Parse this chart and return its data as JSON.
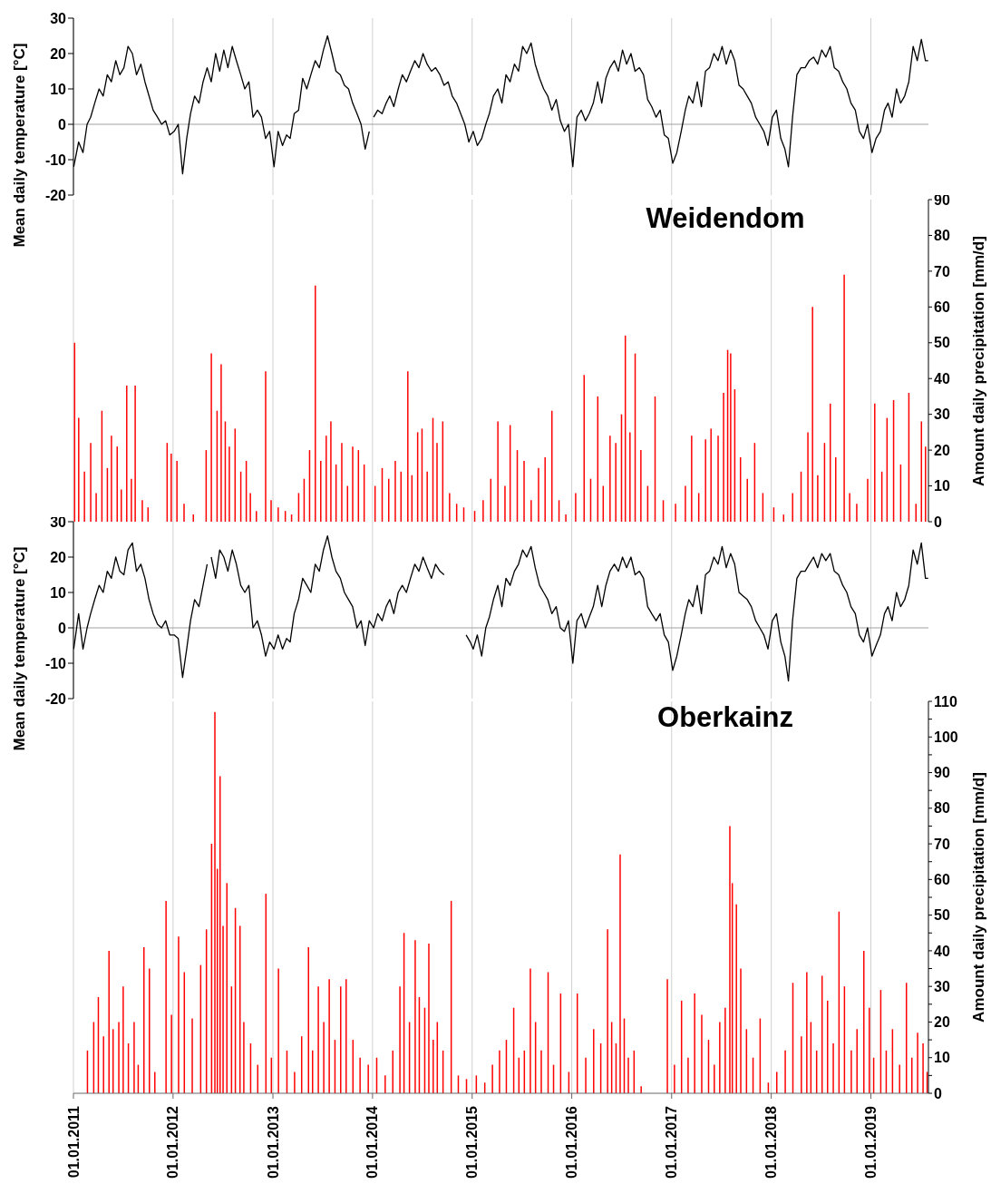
{
  "chart_data": [
    {
      "type": "line",
      "ylabel": "Mean daily temperature [°C]",
      "xlim": [
        "2011-01-01",
        "2019-07-31"
      ],
      "xticks": [
        {
          "value": "2011-01-01",
          "label": null
        },
        {
          "value": "2012-01-01",
          "label": null
        },
        {
          "value": "2013-01-01",
          "label": null
        },
        {
          "value": "2014-01-01",
          "label": null
        },
        {
          "value": "2015-01-01",
          "label": null
        },
        {
          "value": "2016-01-01",
          "label": null
        },
        {
          "value": "2017-01-01",
          "label": null
        },
        {
          "value": "2018-01-01",
          "label": null
        },
        {
          "value": "2019-01-01",
          "label": null
        }
      ],
      "ylim": [
        -20,
        30
      ],
      "yticks": [
        -20,
        -10,
        0,
        10,
        20,
        30
      ],
      "tick_labels": "y",
      "grid": "x",
      "ref_lines": [
        {
          "axis": "y",
          "value": 0,
          "color": "#a0a0a0"
        }
      ],
      "series": [
        {
          "color": "#000000",
          "x": [
            "2011-01-02",
            "2011-01-20",
            "2011-02-05",
            "2011-02-20",
            "2011-03-05",
            "2011-03-20",
            "2011-04-05",
            "2011-04-20",
            "2011-05-05",
            "2011-05-20",
            "2011-06-05",
            "2011-06-20",
            "2011-07-05",
            "2011-07-20",
            "2011-08-05",
            "2011-08-20",
            "2011-09-05",
            "2011-09-20",
            "2011-10-05",
            "2011-10-20",
            "2011-11-05",
            "2011-11-20",
            "2011-12-05",
            "2011-12-20",
            "2012-01-05",
            "2012-01-20",
            "2012-02-05",
            "2012-02-20",
            "2012-03-05",
            "2012-03-20",
            "2012-04-05",
            "2012-04-20",
            "2012-05-05",
            "2012-05-20",
            "2012-06-05",
            "2012-06-20",
            "2012-07-05",
            "2012-07-20",
            "2012-08-05",
            "2012-08-20",
            "2012-09-05",
            "2012-09-20",
            "2012-10-05",
            "2012-10-20",
            "2012-11-05",
            "2012-11-20",
            "2012-12-05",
            "2012-12-20",
            "2013-01-05",
            "2013-01-20",
            "2013-02-05",
            "2013-02-20",
            "2013-03-05",
            "2013-03-20",
            "2013-04-05",
            "2013-04-20",
            "2013-05-05",
            "2013-05-20",
            "2013-06-05",
            "2013-06-20",
            "2013-07-05",
            "2013-07-20",
            "2013-08-05",
            "2013-08-20",
            "2013-09-05",
            "2013-09-20",
            "2013-10-05",
            "2013-10-20",
            "2013-11-05",
            "2013-11-20",
            "2013-12-05",
            "2013-12-20",
            "2013-12-28",
            "2014-01-05",
            "2014-01-20",
            "2014-02-05",
            "2014-02-20",
            "2014-03-05",
            "2014-03-20",
            "2014-04-05",
            "2014-04-20",
            "2014-05-05",
            "2014-05-20",
            "2014-06-05",
            "2014-06-20",
            "2014-07-05",
            "2014-07-20",
            "2014-08-05",
            "2014-08-20",
            "2014-09-05",
            "2014-09-20",
            "2014-10-05",
            "2014-10-20",
            "2014-11-05",
            "2014-11-20",
            "2014-12-05",
            "2014-12-20",
            "2015-01-05",
            "2015-01-20",
            "2015-02-05",
            "2015-02-20",
            "2015-03-05",
            "2015-03-20",
            "2015-04-05",
            "2015-04-20",
            "2015-05-05",
            "2015-05-20",
            "2015-06-05",
            "2015-06-20",
            "2015-07-05",
            "2015-07-20",
            "2015-08-05",
            "2015-08-20",
            "2015-09-05",
            "2015-09-20",
            "2015-10-05",
            "2015-10-20",
            "2015-11-05",
            "2015-11-20",
            "2015-12-05",
            "2015-12-20",
            "2016-01-05",
            "2016-01-20",
            "2016-02-05",
            "2016-02-20",
            "2016-03-05",
            "2016-03-20",
            "2016-04-05",
            "2016-04-20",
            "2016-05-05",
            "2016-05-20",
            "2016-06-05",
            "2016-06-20",
            "2016-07-05",
            "2016-07-20",
            "2016-08-05",
            "2016-08-20",
            "2016-09-05",
            "2016-09-20",
            "2016-10-05",
            "2016-10-20",
            "2016-11-05",
            "2016-11-20",
            "2016-12-05",
            "2016-12-20",
            "2017-01-05",
            "2017-01-20",
            "2017-02-05",
            "2017-02-20",
            "2017-03-05",
            "2017-03-20",
            "2017-04-05",
            "2017-04-20",
            "2017-05-05",
            "2017-05-20",
            "2017-06-05",
            "2017-06-20",
            "2017-07-05",
            "2017-07-20",
            "2017-08-05",
            "2017-08-20",
            "2017-09-05",
            "2017-09-20",
            "2017-10-05",
            "2017-10-20",
            "2017-11-05",
            "2017-11-20",
            "2017-12-05",
            "2017-12-20",
            "2018-01-05",
            "2018-01-20",
            "2018-02-05",
            "2018-02-20",
            "2018-03-05",
            "2018-03-20",
            "2018-04-05",
            "2018-04-20",
            "2018-05-05",
            "2018-05-20",
            "2018-06-05",
            "2018-06-20",
            "2018-07-05",
            "2018-07-20",
            "2018-08-05",
            "2018-08-20",
            "2018-09-05",
            "2018-09-20",
            "2018-10-05",
            "2018-10-20",
            "2018-11-05",
            "2018-11-20",
            "2018-12-05",
            "2018-12-20",
            "2019-01-05",
            "2019-01-20",
            "2019-02-05",
            "2019-02-20",
            "2019-03-05",
            "2019-03-20",
            "2019-04-05",
            "2019-04-20",
            "2019-05-05",
            "2019-05-20",
            "2019-06-05",
            "2019-06-20",
            "2019-07-05",
            "2019-07-20",
            "2019-07-30"
          ],
          "values": [
            -12,
            -5,
            -8,
            0,
            2,
            6,
            10,
            8,
            14,
            12,
            18,
            14,
            16,
            22,
            20,
            14,
            17,
            12,
            8,
            4,
            2,
            0,
            1,
            -3,
            -2,
            0,
            -14,
            -4,
            3,
            8,
            6,
            12,
            16,
            12,
            20,
            15,
            21,
            16,
            22,
            18,
            14,
            10,
            12,
            2,
            4,
            2,
            -4,
            -2,
            -12,
            -2,
            -6,
            -3,
            -4,
            3,
            4,
            13,
            10,
            14,
            18,
            16,
            21,
            25,
            20,
            15,
            14,
            11,
            10,
            6,
            3,
            0,
            -7,
            -2,
            null,
            2,
            4,
            3,
            6,
            8,
            5,
            10,
            14,
            12,
            15,
            18,
            16,
            20,
            17,
            15,
            16,
            14,
            11,
            12,
            8,
            6,
            3,
            0,
            -5,
            -2,
            -6,
            -4,
            0,
            3,
            8,
            10,
            6,
            14,
            12,
            17,
            15,
            22,
            20,
            23,
            17,
            13,
            10,
            8,
            4,
            7,
            1,
            -2,
            0,
            -12,
            2,
            4,
            1,
            3,
            6,
            12,
            6,
            13,
            16,
            18,
            15,
            21,
            17,
            20,
            15,
            16,
            14,
            7,
            5,
            2,
            4,
            -3,
            -4,
            -11,
            -8,
            -2,
            4,
            8,
            6,
            12,
            5,
            15,
            16,
            20,
            18,
            22,
            17,
            21,
            18,
            11,
            10,
            8,
            6,
            2,
            0,
            -2,
            -6,
            2,
            4,
            -4,
            -7,
            -12,
            2,
            14,
            16,
            16,
            18,
            19,
            17,
            21,
            19,
            22,
            16,
            15,
            12,
            10,
            6,
            4,
            -2,
            -4,
            0,
            -8,
            -4,
            -2,
            4,
            6,
            2,
            10,
            6,
            8,
            12,
            22,
            18,
            24,
            18,
            18
          ]
        }
      ]
    },
    {
      "type": "bar",
      "title": "Weidendom",
      "y2label": "Amount daily precipitation [mm/d]",
      "xlim": [
        "2011-01-01",
        "2019-07-31"
      ],
      "xticks": [
        {
          "value": "2011-01-01",
          "label": null
        },
        {
          "value": "2012-01-01",
          "label": null
        },
        {
          "value": "2013-01-01",
          "label": null
        },
        {
          "value": "2014-01-01",
          "label": null
        },
        {
          "value": "2015-01-01",
          "label": null
        },
        {
          "value": "2016-01-01",
          "label": null
        },
        {
          "value": "2017-01-01",
          "label": null
        },
        {
          "value": "2018-01-01",
          "label": null
        },
        {
          "value": "2019-01-01",
          "label": null
        }
      ],
      "y2lim": [
        0,
        90
      ],
      "y2ticks": [
        0,
        10,
        20,
        30,
        40,
        50,
        60,
        70,
        80,
        90
      ],
      "tick_labels": "y",
      "grid": "x",
      "series": [
        {
          "axis": "y2",
          "color": "#ff0000",
          "x": [
            "2011-01-05",
            "2011-01-20",
            "2011-02-10",
            "2011-03-05",
            "2011-03-25",
            "2011-04-15",
            "2011-05-05",
            "2011-05-20",
            "2011-06-10",
            "2011-06-25",
            "2011-07-15",
            "2011-08-01",
            "2011-08-15",
            "2011-09-10",
            "2011-10-01",
            "2011-12-10",
            "2011-12-25",
            "2012-01-15",
            "2012-02-10",
            "2012-03-15",
            "2012-05-01",
            "2012-05-20",
            "2012-06-10",
            "2012-06-25",
            "2012-07-10",
            "2012-07-25",
            "2012-08-15",
            "2012-09-05",
            "2012-09-25",
            "2012-10-10",
            "2012-11-01",
            "2012-12-05",
            "2012-12-25",
            "2013-01-20",
            "2013-02-15",
            "2013-03-10",
            "2013-04-05",
            "2013-04-25",
            "2013-05-15",
            "2013-06-05",
            "2013-06-25",
            "2013-07-15",
            "2013-08-01",
            "2013-08-20",
            "2013-09-10",
            "2013-10-01",
            "2013-10-20",
            "2013-11-10",
            "2013-12-01",
            "2014-01-10",
            "2014-02-05",
            "2014-03-01",
            "2014-03-25",
            "2014-04-15",
            "2014-05-10",
            "2014-05-25",
            "2014-06-15",
            "2014-07-01",
            "2014-07-20",
            "2014-08-10",
            "2014-08-25",
            "2014-09-15",
            "2014-10-10",
            "2014-11-05",
            "2014-12-01",
            "2015-01-10",
            "2015-02-10",
            "2015-03-10",
            "2015-04-05",
            "2015-05-01",
            "2015-05-20",
            "2015-06-15",
            "2015-07-10",
            "2015-08-05",
            "2015-09-01",
            "2015-09-25",
            "2015-10-20",
            "2015-11-15",
            "2015-12-10",
            "2016-01-15",
            "2016-02-15",
            "2016-03-10",
            "2016-04-05",
            "2016-04-25",
            "2016-05-20",
            "2016-06-10",
            "2016-07-01",
            "2016-07-15",
            "2016-08-01",
            "2016-08-20",
            "2016-09-10",
            "2016-10-05",
            "2016-11-01",
            "2016-12-01",
            "2017-01-15",
            "2017-02-20",
            "2017-03-15",
            "2017-04-10",
            "2017-05-05",
            "2017-05-25",
            "2017-06-20",
            "2017-07-10",
            "2017-07-25",
            "2017-08-05",
            "2017-08-20",
            "2017-09-10",
            "2017-10-05",
            "2017-11-01",
            "2017-12-01",
            "2018-01-10",
            "2018-02-15",
            "2018-03-20",
            "2018-04-20",
            "2018-05-15",
            "2018-06-01",
            "2018-06-20",
            "2018-07-15",
            "2018-08-05",
            "2018-08-25",
            "2018-09-25",
            "2018-10-15",
            "2018-11-10",
            "2018-12-20",
            "2019-01-15",
            "2019-02-10",
            "2019-03-01",
            "2019-03-25",
            "2019-04-20",
            "2019-05-20",
            "2019-06-15",
            "2019-07-05",
            "2019-07-20"
          ],
          "values": [
            50,
            29,
            14,
            22,
            8,
            31,
            15,
            24,
            21,
            9,
            38,
            12,
            38,
            6,
            4,
            22,
            19,
            17,
            5,
            2,
            20,
            47,
            31,
            44,
            28,
            21,
            26,
            14,
            17,
            8,
            3,
            42,
            6,
            4,
            3,
            2,
            8,
            12,
            20,
            66,
            17,
            24,
            28,
            16,
            22,
            10,
            21,
            20,
            16,
            10,
            15,
            12,
            17,
            14,
            42,
            13,
            25,
            26,
            14,
            29,
            22,
            28,
            8,
            5,
            4,
            3,
            6,
            12,
            28,
            10,
            27,
            20,
            17,
            6,
            15,
            18,
            31,
            6,
            2,
            8,
            41,
            12,
            35,
            10,
            24,
            22,
            30,
            52,
            25,
            47,
            20,
            10,
            35,
            6,
            5,
            10,
            24,
            8,
            23,
            26,
            24,
            36,
            48,
            47,
            37,
            18,
            12,
            22,
            8,
            4,
            2,
            8,
            14,
            25,
            60,
            13,
            22,
            33,
            18,
            69,
            8,
            5,
            12,
            33,
            14,
            29,
            34,
            16,
            36,
            5,
            28,
            21
          ]
        }
      ]
    },
    {
      "type": "line",
      "ylabel": "Mean daily temperature [°C]",
      "xlim": [
        "2011-01-01",
        "2019-07-31"
      ],
      "xticks": [
        {
          "value": "2011-01-01",
          "label": null
        },
        {
          "value": "2012-01-01",
          "label": null
        },
        {
          "value": "2013-01-01",
          "label": null
        },
        {
          "value": "2014-01-01",
          "label": null
        },
        {
          "value": "2015-01-01",
          "label": null
        },
        {
          "value": "2016-01-01",
          "label": null
        },
        {
          "value": "2017-01-01",
          "label": null
        },
        {
          "value": "2018-01-01",
          "label": null
        },
        {
          "value": "2019-01-01",
          "label": null
        }
      ],
      "ylim": [
        -20,
        30
      ],
      "yticks": [
        -20,
        -10,
        0,
        10,
        20,
        30
      ],
      "tick_labels": "y",
      "grid": "x",
      "ref_lines": [
        {
          "axis": "y",
          "value": 0,
          "color": "#a0a0a0"
        }
      ],
      "series": [
        {
          "color": "#000000",
          "x": [
            "2011-01-02",
            "2011-01-20",
            "2011-02-05",
            "2011-02-20",
            "2011-03-05",
            "2011-03-20",
            "2011-04-05",
            "2011-04-20",
            "2011-05-05",
            "2011-05-20",
            "2011-06-05",
            "2011-06-20",
            "2011-07-05",
            "2011-07-20",
            "2011-08-05",
            "2011-08-20",
            "2011-09-05",
            "2011-09-20",
            "2011-10-05",
            "2011-10-20",
            "2011-11-05",
            "2011-11-20",
            "2011-12-05",
            "2011-12-20",
            "2012-01-05",
            "2012-01-20",
            "2012-02-05",
            "2012-02-20",
            "2012-03-05",
            "2012-03-20",
            "2012-04-05",
            "2012-04-20",
            "2012-05-05",
            "2012-05-12",
            "2012-05-20",
            "2012-06-05",
            "2012-06-20",
            "2012-07-05",
            "2012-07-20",
            "2012-08-05",
            "2012-08-20",
            "2012-09-05",
            "2012-09-20",
            "2012-10-05",
            "2012-10-20",
            "2012-11-05",
            "2012-11-20",
            "2012-12-05",
            "2012-12-20",
            "2013-01-05",
            "2013-01-20",
            "2013-02-05",
            "2013-02-20",
            "2013-03-05",
            "2013-03-20",
            "2013-04-05",
            "2013-04-20",
            "2013-05-05",
            "2013-05-20",
            "2013-06-05",
            "2013-06-20",
            "2013-07-05",
            "2013-07-20",
            "2013-08-05",
            "2013-08-20",
            "2013-09-05",
            "2013-09-20",
            "2013-10-05",
            "2013-10-20",
            "2013-11-05",
            "2013-11-20",
            "2013-12-05",
            "2013-12-20",
            "2014-01-05",
            "2014-01-20",
            "2014-02-05",
            "2014-02-20",
            "2014-03-05",
            "2014-03-20",
            "2014-04-05",
            "2014-04-20",
            "2014-05-05",
            "2014-05-20",
            "2014-06-05",
            "2014-06-20",
            "2014-07-05",
            "2014-07-20",
            "2014-08-05",
            "2014-08-20",
            "2014-09-05",
            "2014-09-20",
            "2014-10-15",
            "2014-12-10",
            "2014-12-25",
            "2015-01-05",
            "2015-01-20",
            "2015-02-05",
            "2015-02-20",
            "2015-03-05",
            "2015-03-20",
            "2015-04-05",
            "2015-04-20",
            "2015-05-05",
            "2015-05-20",
            "2015-06-05",
            "2015-06-20",
            "2015-07-05",
            "2015-07-20",
            "2015-08-05",
            "2015-08-20",
            "2015-09-05",
            "2015-09-20",
            "2015-10-05",
            "2015-10-20",
            "2015-11-05",
            "2015-11-20",
            "2015-12-05",
            "2015-12-20",
            "2016-01-05",
            "2016-01-20",
            "2016-02-05",
            "2016-02-20",
            "2016-03-05",
            "2016-03-20",
            "2016-04-05",
            "2016-04-20",
            "2016-05-05",
            "2016-05-20",
            "2016-06-05",
            "2016-06-20",
            "2016-07-05",
            "2016-07-20",
            "2016-08-05",
            "2016-08-20",
            "2016-09-05",
            "2016-09-20",
            "2016-10-05",
            "2016-10-20",
            "2016-11-05",
            "2016-11-20",
            "2016-12-05",
            "2016-12-20",
            "2017-01-05",
            "2017-01-20",
            "2017-02-05",
            "2017-02-20",
            "2017-03-05",
            "2017-03-20",
            "2017-04-05",
            "2017-04-20",
            "2017-05-05",
            "2017-05-20",
            "2017-06-05",
            "2017-06-20",
            "2017-07-05",
            "2017-07-20",
            "2017-08-05",
            "2017-08-20",
            "2017-09-05",
            "2017-09-20",
            "2017-10-05",
            "2017-10-20",
            "2017-11-05",
            "2017-11-20",
            "2017-12-05",
            "2017-12-20",
            "2018-01-05",
            "2018-01-20",
            "2018-02-05",
            "2018-02-20",
            "2018-03-05",
            "2018-03-20",
            "2018-04-05",
            "2018-04-20",
            "2018-05-05",
            "2018-05-20",
            "2018-06-05",
            "2018-06-20",
            "2018-07-05",
            "2018-07-20",
            "2018-08-05",
            "2018-08-20",
            "2018-09-05",
            "2018-09-20",
            "2018-10-05",
            "2018-10-20",
            "2018-11-05",
            "2018-11-20",
            "2018-12-05",
            "2018-12-20",
            "2019-01-05",
            "2019-01-20",
            "2019-02-05",
            "2019-02-20",
            "2019-03-05",
            "2019-03-20",
            "2019-04-05",
            "2019-04-20",
            "2019-05-05",
            "2019-05-20",
            "2019-06-05",
            "2019-06-20",
            "2019-07-05",
            "2019-07-20",
            "2019-07-30"
          ],
          "values": [
            -6,
            4,
            -6,
            0,
            4,
            8,
            12,
            10,
            16,
            14,
            20,
            16,
            15,
            22,
            24,
            16,
            18,
            14,
            8,
            4,
            1,
            0,
            2,
            -2,
            -2,
            -3,
            -14,
            -6,
            2,
            8,
            6,
            12,
            18,
            null,
            20,
            14,
            22,
            20,
            16,
            22,
            18,
            12,
            10,
            12,
            0,
            2,
            -2,
            -8,
            -4,
            -6,
            -2,
            -6,
            -3,
            -4,
            4,
            8,
            14,
            12,
            10,
            18,
            16,
            22,
            26,
            20,
            16,
            14,
            10,
            8,
            6,
            0,
            2,
            -5,
            2,
            0,
            4,
            2,
            6,
            8,
            4,
            10,
            12,
            10,
            14,
            18,
            16,
            20,
            17,
            14,
            18,
            16,
            15,
            null,
            -2,
            -4,
            -6,
            -2,
            -8,
            0,
            3,
            8,
            12,
            6,
            14,
            12,
            16,
            18,
            22,
            20,
            23,
            17,
            12,
            10,
            8,
            4,
            6,
            0,
            -1,
            2,
            -10,
            2,
            4,
            0,
            3,
            6,
            12,
            6,
            12,
            16,
            18,
            16,
            20,
            17,
            20,
            15,
            16,
            14,
            6,
            4,
            2,
            4,
            -2,
            -4,
            -12,
            -8,
            -2,
            4,
            8,
            6,
            12,
            4,
            15,
            16,
            20,
            18,
            23,
            17,
            21,
            18,
            10,
            9,
            8,
            6,
            2,
            0,
            -2,
            -6,
            2,
            4,
            -4,
            -8,
            -15,
            2,
            14,
            16,
            16,
            18,
            20,
            17,
            21,
            19,
            21,
            16,
            15,
            12,
            10,
            6,
            4,
            -2,
            -4,
            0,
            -8,
            -5,
            -2,
            4,
            6,
            2,
            10,
            6,
            8,
            12,
            22,
            18,
            24,
            14,
            14
          ]
        }
      ]
    },
    {
      "type": "bar",
      "title": "Oberkainz",
      "y2label": "Amount daily precipitation [mm/d]",
      "xlim": [
        "2011-01-01",
        "2019-07-31"
      ],
      "xticks": [
        {
          "value": "2011-01-01",
          "label": "01.01.2011"
        },
        {
          "value": "2012-01-01",
          "label": "01.01.2012"
        },
        {
          "value": "2013-01-01",
          "label": "01.01.2013"
        },
        {
          "value": "2014-01-01",
          "label": "01.01.2014"
        },
        {
          "value": "2015-01-01",
          "label": "01.01.2015"
        },
        {
          "value": "2016-01-01",
          "label": "01.01.2016"
        },
        {
          "value": "2017-01-01",
          "label": "01.01.2017"
        },
        {
          "value": "2018-01-01",
          "label": "01.01.2018"
        },
        {
          "value": "2019-01-01",
          "label": "01.01.2019"
        }
      ],
      "y2lim": [
        0,
        110
      ],
      "y2ticks": [
        0,
        {
          "value": 5,
          "label": null
        },
        10,
        {
          "value": 15,
          "label": null
        },
        20,
        {
          "value": 25,
          "label": null
        },
        30,
        {
          "value": 35,
          "label": null
        },
        40,
        {
          "value": 45,
          "label": null
        },
        50,
        {
          "value": 55,
          "label": null
        },
        60,
        {
          "value": 65,
          "label": null
        },
        70,
        {
          "value": 75,
          "label": null
        },
        80,
        {
          "value": 85,
          "label": null
        },
        90,
        {
          "value": 95,
          "label": null
        },
        100,
        {
          "value": 105,
          "label": null
        },
        110
      ],
      "grid": "x",
      "series": [
        {
          "axis": "y2",
          "color": "#ff0000",
          "x": [
            "2011-02-20",
            "2011-03-15",
            "2011-04-01",
            "2011-04-20",
            "2011-05-10",
            "2011-05-25",
            "2011-06-15",
            "2011-07-01",
            "2011-07-20",
            "2011-08-10",
            "2011-08-25",
            "2011-09-15",
            "2011-10-05",
            "2011-10-25",
            "2011-12-05",
            "2011-12-25",
            "2012-01-20",
            "2012-02-10",
            "2012-03-10",
            "2012-04-10",
            "2012-05-01",
            "2012-05-20",
            "2012-06-01",
            "2012-06-10",
            "2012-06-20",
            "2012-07-01",
            "2012-07-15",
            "2012-08-01",
            "2012-08-15",
            "2012-09-01",
            "2012-09-15",
            "2012-10-10",
            "2012-11-05",
            "2012-12-05",
            "2012-12-25",
            "2013-01-20",
            "2013-02-20",
            "2013-03-20",
            "2013-04-15",
            "2013-05-10",
            "2013-05-25",
            "2013-06-15",
            "2013-07-05",
            "2013-07-25",
            "2013-08-15",
            "2013-09-05",
            "2013-09-25",
            "2013-10-20",
            "2013-11-15",
            "2013-12-15",
            "2014-01-15",
            "2014-02-15",
            "2014-03-15",
            "2014-04-10",
            "2014-04-25",
            "2014-05-15",
            "2014-06-05",
            "2014-06-20",
            "2014-07-10",
            "2014-07-25",
            "2014-08-10",
            "2014-08-25",
            "2014-09-15",
            "2014-10-15",
            "2014-11-10",
            "2014-12-10",
            "2015-01-15",
            "2015-02-15",
            "2015-03-15",
            "2015-04-10",
            "2015-05-05",
            "2015-06-01",
            "2015-06-20",
            "2015-07-10",
            "2015-08-01",
            "2015-08-20",
            "2015-09-10",
            "2015-10-05",
            "2015-10-25",
            "2015-11-20",
            "2015-12-20",
            "2016-01-20",
            "2016-02-20",
            "2016-03-20",
            "2016-04-15",
            "2016-05-10",
            "2016-05-25",
            "2016-06-10",
            "2016-06-25",
            "2016-07-10",
            "2016-07-25",
            "2016-08-15",
            "2016-09-10",
            "2016-12-15",
            "2017-01-10",
            "2017-02-05",
            "2017-03-01",
            "2017-03-25",
            "2017-04-20",
            "2017-05-15",
            "2017-06-05",
            "2017-06-25",
            "2017-07-15",
            "2017-08-01",
            "2017-08-10",
            "2017-08-25",
            "2017-09-10",
            "2017-10-01",
            "2017-10-25",
            "2017-11-20",
            "2017-12-20",
            "2018-01-20",
            "2018-02-20",
            "2018-03-20",
            "2018-04-20",
            "2018-05-10",
            "2018-05-25",
            "2018-06-15",
            "2018-07-05",
            "2018-07-25",
            "2018-08-15",
            "2018-09-05",
            "2018-09-25",
            "2018-10-20",
            "2018-11-10",
            "2018-12-05",
            "2018-12-25",
            "2019-01-10",
            "2019-02-05",
            "2019-02-25",
            "2019-03-20",
            "2019-04-15",
            "2019-05-10",
            "2019-05-30",
            "2019-06-20",
            "2019-07-10",
            "2019-07-25"
          ],
          "values": [
            12,
            20,
            27,
            16,
            40,
            18,
            20,
            30,
            14,
            20,
            8,
            41,
            35,
            6,
            54,
            22,
            44,
            34,
            21,
            36,
            46,
            70,
            107,
            63,
            89,
            47,
            59,
            30,
            52,
            47,
            20,
            14,
            8,
            56,
            10,
            35,
            12,
            6,
            16,
            41,
            12,
            30,
            20,
            32,
            15,
            30,
            32,
            15,
            10,
            8,
            10,
            5,
            12,
            30,
            45,
            20,
            43,
            27,
            24,
            42,
            15,
            20,
            12,
            54,
            5,
            4,
            5,
            3,
            8,
            12,
            15,
            24,
            10,
            12,
            35,
            20,
            12,
            34,
            8,
            28,
            6,
            28,
            10,
            18,
            14,
            46,
            20,
            14,
            67,
            21,
            10,
            12,
            2,
            32,
            8,
            26,
            10,
            28,
            22,
            15,
            8,
            20,
            24,
            75,
            59,
            53,
            35,
            18,
            10,
            21,
            3,
            6,
            12,
            31,
            16,
            34,
            20,
            12,
            33,
            26,
            14,
            51,
            30,
            12,
            18,
            40,
            24,
            10,
            29,
            12,
            18,
            8,
            31,
            10,
            17,
            14,
            6
          ]
        }
      ]
    }
  ]
}
